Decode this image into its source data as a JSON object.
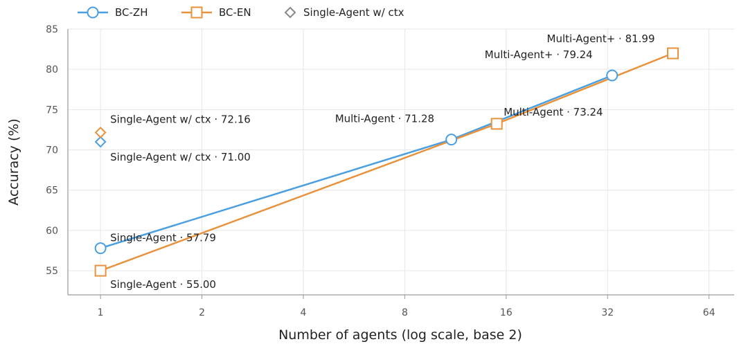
{
  "chart_data": {
    "type": "line",
    "xlabel": "Number of agents (log scale, base 2)",
    "ylabel": "Accuracy (%)",
    "x_scale": "log2",
    "xlim": [
      0.8,
      76
    ],
    "ylim": [
      52,
      85
    ],
    "x_ticks": [
      1,
      2,
      4,
      8,
      16,
      32,
      64
    ],
    "y_ticks": [
      55,
      60,
      65,
      70,
      75,
      80,
      85
    ],
    "grid": true,
    "legend_position": "top-left",
    "series": [
      {
        "name": "BC-ZH",
        "color": "#4a9fe0",
        "marker": "circle",
        "points": [
          {
            "x": 1,
            "y": 57.79,
            "label": "Single-Agent · 57.79"
          },
          {
            "x": 11,
            "y": 71.28,
            "label": "Multi-Agent · 71.28"
          },
          {
            "x": 33,
            "y": 79.24,
            "label": "Multi-Agent+ · 79.24"
          }
        ]
      },
      {
        "name": "BC-EN",
        "color": "#e8923c",
        "marker": "square",
        "points": [
          {
            "x": 1,
            "y": 55.0,
            "label": "Single-Agent · 55.00"
          },
          {
            "x": 15,
            "y": 73.24,
            "label": "Multi-Agent · 73.24"
          },
          {
            "x": 50,
            "y": 81.99,
            "label": "Multi-Agent+ · 81.99"
          }
        ]
      },
      {
        "name": "Single-Agent w/ ctx",
        "color": "#888888",
        "marker": "diamond",
        "points": [
          {
            "x": 1,
            "y": 71.0,
            "color": "#4a9fe0",
            "label": "Single-Agent w/ ctx · 71.00"
          },
          {
            "x": 1,
            "y": 72.16,
            "color": "#e8923c",
            "label": "Single-Agent w/ ctx · 72.16"
          }
        ]
      }
    ]
  }
}
